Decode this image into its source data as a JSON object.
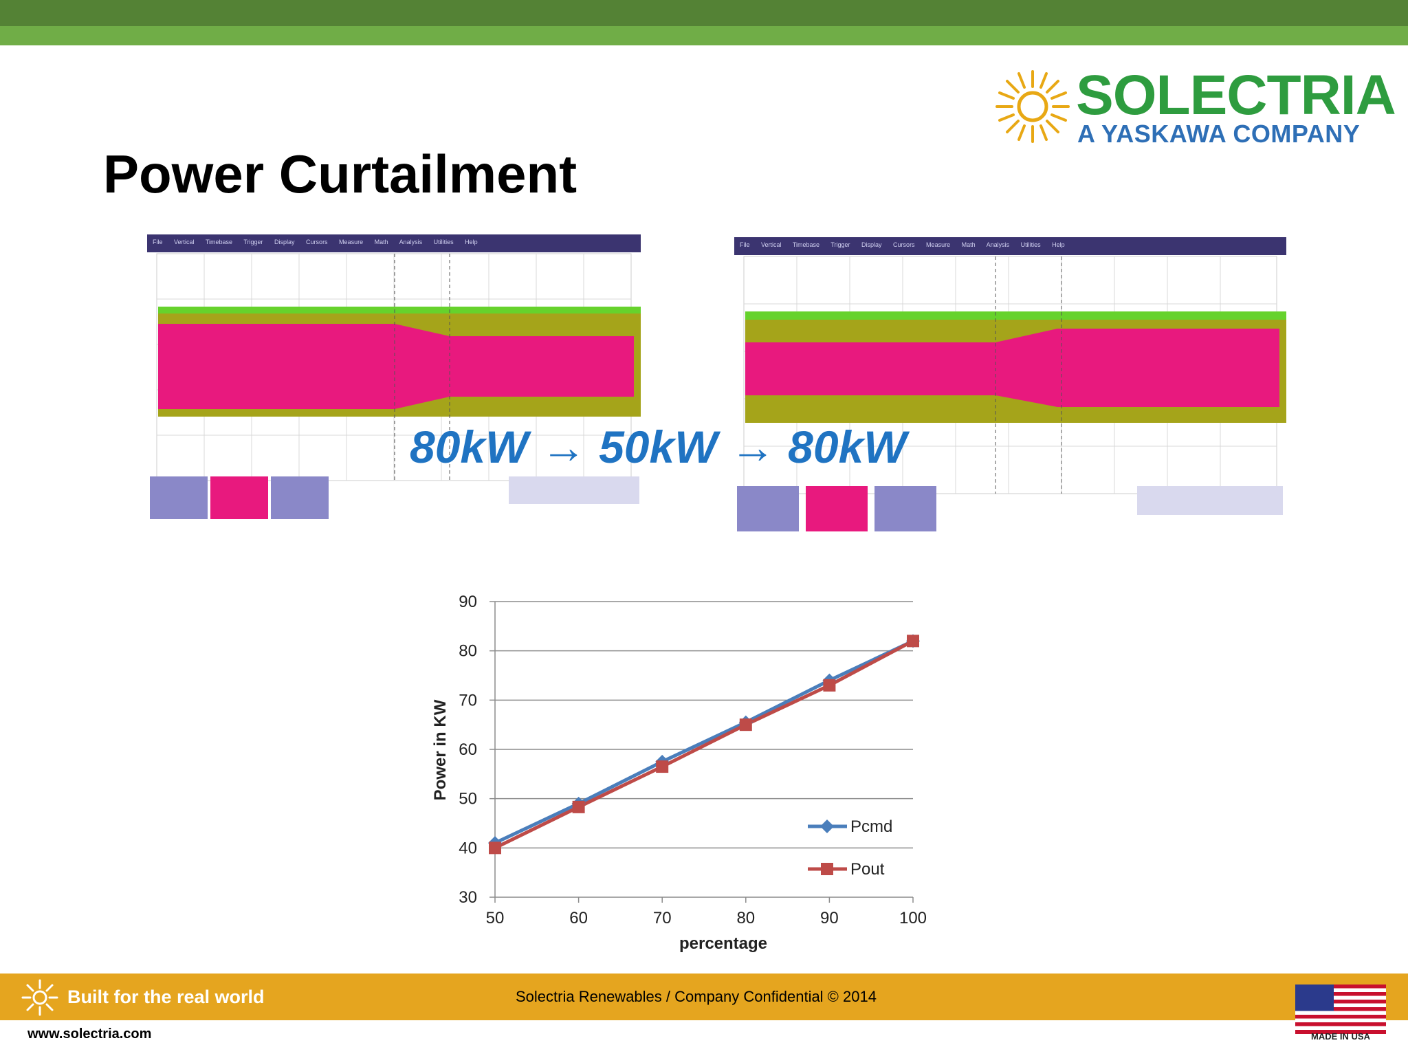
{
  "header": {
    "title": "Power Curtailment",
    "logo_name": "SOLECTRIA",
    "logo_tagline": "A YASKAWA COMPANY",
    "colors": {
      "dark_green": "#548235",
      "light_green": "#70ad47",
      "logo_green": "#2e9c3f",
      "logo_blue": "#2e6fb6"
    }
  },
  "scopes": {
    "menu": "File Vertical Timebase Trigger Display Cursors Measure Math Analysis Utilities Help",
    "transition_label": "80kW → 50kW → 80kW"
  },
  "chart_data": {
    "type": "line",
    "x": [
      50,
      60,
      70,
      80,
      90,
      100
    ],
    "series": [
      {
        "name": "Pcmd",
        "values": [
          41,
          49,
          57.5,
          65.5,
          74,
          82
        ],
        "color": "#4a7ebb",
        "marker": "diamond"
      },
      {
        "name": "Pout",
        "values": [
          40,
          48.3,
          56.5,
          65,
          73,
          82
        ],
        "color": "#be4b48",
        "marker": "square"
      }
    ],
    "xlabel": "percentage",
    "ylabel": "Power in KW",
    "xlim": [
      50,
      100
    ],
    "ylim": [
      30,
      90
    ],
    "xticks": [
      "50",
      "60",
      "70",
      "80",
      "90",
      "100"
    ],
    "yticks": [
      "30",
      "40",
      "50",
      "60",
      "70",
      "80",
      "90"
    ],
    "grid": true,
    "legend": "bottom-right"
  },
  "footer": {
    "tagline": "Built for the real world",
    "confidential": "Solectria Renewables / Company Confidential © 2014",
    "url": "www.solectria.com",
    "made_in": "MADE IN USA",
    "color": "#e5a51f"
  }
}
